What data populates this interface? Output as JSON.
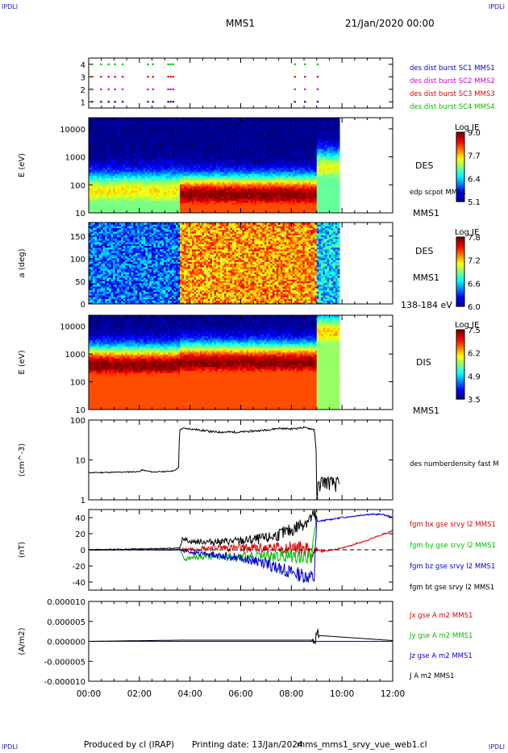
{
  "header": {
    "spacecraft": "MMS1",
    "datetime": "21/Jan/2020 00:00",
    "corner_tl": "IPDLI",
    "corner_tr": "IPDLI",
    "corner_bl": "IPDLI",
    "corner_br": "IPDLI"
  },
  "footer": {
    "produced_by": "Produced by cl (IRAP)",
    "printing_date": "Printing date: 13/Jan/2024",
    "filename": "mms_mms1_srvy_vue_web1.cl"
  },
  "colors": {
    "blue": "#0000cc",
    "magenta": "#cc00cc",
    "red": "#dd0000",
    "green": "#00bb00",
    "black": "#000000"
  },
  "chart_data": [
    {
      "type": "scatter",
      "panel": "burst-availability",
      "ylabel": "",
      "yticks": [
        "1",
        "2",
        "3",
        "4"
      ],
      "ylim": [
        0.5,
        4.5
      ],
      "series": [
        {
          "name": "des dist burst SC1 MMS1",
          "level": 1,
          "color": "#0000cc",
          "x_hours": [
            0.1,
            0.45,
            0.75,
            1.0,
            1.3,
            2.3,
            2.5,
            3.1,
            3.2,
            3.3,
            8.1,
            8.5,
            9.0
          ]
        },
        {
          "name": "des dist burst SC2 MMS2",
          "level": 2,
          "color": "#cc00cc",
          "x_hours": [
            0.1,
            0.45,
            0.75,
            1.0,
            1.3,
            2.3,
            2.5,
            3.1,
            3.2,
            3.3,
            8.1,
            8.5,
            9.0
          ]
        },
        {
          "name": "des dist burst SC3 MMS3",
          "level": 3,
          "color": "#dd0000",
          "x_hours": [
            0.1,
            0.45,
            0.75,
            1.0,
            1.3,
            2.3,
            2.5,
            3.1,
            3.2,
            3.3,
            8.1,
            8.5,
            9.0
          ]
        },
        {
          "name": "des dist burst SC4 MMS4",
          "level": 4,
          "color": "#00bb00",
          "x_hours": [
            0.1,
            0.45,
            0.75,
            1.0,
            1.3,
            2.3,
            2.5,
            3.1,
            3.2,
            3.3,
            8.1,
            8.5,
            9.0
          ]
        }
      ]
    },
    {
      "type": "heatmap",
      "panel": "des-energy",
      "ylabel": "E (eV)",
      "yscale": "log",
      "yticks": [
        "10",
        "100",
        "1000",
        "10000"
      ],
      "ylim": [
        10,
        25000
      ],
      "colorbar": {
        "label": "Log JE",
        "min": 5.1,
        "max": 9.0,
        "ticks": [
          "9.0",
          "7.7",
          "6.4",
          "5.1"
        ]
      },
      "side_labels": [
        "DES",
        "edp scpot MMS1",
        "MMS1"
      ],
      "segments": [
        {
          "x_start": 0.0,
          "x_end": 3.6,
          "peak_eV": 60,
          "peak_value": 7.6
        },
        {
          "x_start": 3.6,
          "x_end": 9.0,
          "peak_eV": 45,
          "peak_value": 9.0
        },
        {
          "x_start": 9.0,
          "x_end": 9.9,
          "peak_eV": 400,
          "peak_value": 7.5
        }
      ]
    },
    {
      "type": "heatmap",
      "panel": "des-pitch",
      "ylabel": "a (deg)",
      "yticks": [
        "0",
        "50",
        "100",
        "150"
      ],
      "ylim": [
        0,
        180
      ],
      "colorbar": {
        "label": "Log JE",
        "min": 6.0,
        "max": 7.8,
        "ticks": [
          "7.8",
          "7.2",
          "6.6",
          "6.0"
        ]
      },
      "side_labels": [
        "DES",
        "MMS1",
        "138-184 eV"
      ],
      "segments": [
        {
          "x_start": 0.0,
          "x_end": 3.6,
          "mean_value": 6.4
        },
        {
          "x_start": 3.6,
          "x_end": 9.0,
          "mean_value": 7.3
        },
        {
          "x_start": 9.0,
          "x_end": 9.9,
          "mean_value": 6.6
        }
      ]
    },
    {
      "type": "heatmap",
      "panel": "dis-energy",
      "ylabel": "E (eV)",
      "yscale": "log",
      "yticks": [
        "10",
        "100",
        "1000",
        "10000"
      ],
      "ylim": [
        10,
        25000
      ],
      "colorbar": {
        "label": "Log JE",
        "min": 3.5,
        "max": 7.5,
        "ticks": [
          "7.5",
          "6.2",
          "4.9",
          "3.5"
        ]
      },
      "side_labels": [
        "DIS",
        "MMS1"
      ],
      "segments": [
        {
          "x_start": 0.0,
          "x_end": 3.6,
          "peak_eV": 400,
          "peak_value": 7.5
        },
        {
          "x_start": 3.6,
          "x_end": 9.0,
          "peak_eV": 500,
          "peak_value": 7.5
        },
        {
          "x_start": 9.0,
          "x_end": 9.9,
          "peak_eV": 6000,
          "peak_value": 6.2
        }
      ]
    },
    {
      "type": "line",
      "panel": "density",
      "ylabel": "(cm^-3)",
      "yscale": "log",
      "yticks": [
        "1",
        "10",
        "100"
      ],
      "ylim": [
        1,
        100
      ],
      "side_labels": [
        "des numberdensity fast M"
      ],
      "series": [
        {
          "name": "des numberdensity fast M",
          "color": "#000000",
          "x": [
            0.0,
            1.0,
            2.0,
            2.1,
            2.5,
            3.0,
            3.4,
            3.55,
            3.6,
            3.7,
            4.0,
            5.0,
            6.0,
            7.0,
            7.5,
            8.0,
            8.5,
            8.9,
            9.0,
            9.1,
            9.2,
            9.5,
            9.9
          ],
          "y": [
            4.8,
            4.9,
            5.1,
            5.6,
            5.0,
            5.1,
            5.4,
            6.5,
            55,
            62,
            60,
            50,
            50,
            56,
            62,
            60,
            65,
            58,
            1.3,
            2.5,
            3.0,
            2.8,
            2.5
          ]
        }
      ]
    },
    {
      "type": "line",
      "panel": "magnetic-field",
      "ylabel": "(nT)",
      "yticks": [
        "-40",
        "-20",
        "0",
        "20",
        "40"
      ],
      "ylim": [
        -50,
        50
      ],
      "side_labels": [
        "fgm bx gse srvy l2 MMS1",
        "fgm by gse srvy l2 MMS1",
        "fgm bz gse srvy l2 MMS1",
        "fgm bt gse srvy l2 MMS1"
      ],
      "series": [
        {
          "name": "fgm bx gse srvy l2 MMS1",
          "color": "#dd0000",
          "x": [
            0,
            3.6,
            4.0,
            5.0,
            6.0,
            7.0,
            8.0,
            9.0,
            9.2,
            10.0,
            11.0,
            12.0
          ],
          "y": [
            0,
            0,
            1,
            3,
            2,
            2,
            3,
            0,
            -2,
            2,
            12,
            24
          ]
        },
        {
          "name": "fgm by gse srvy l2 MMS1",
          "color": "#00bb00",
          "x": [
            0,
            3.6,
            3.8,
            4.0,
            5.0,
            6.0,
            7.0,
            8.0,
            8.8,
            9.0
          ],
          "y": [
            0,
            0,
            -12,
            -10,
            -8,
            -9,
            -8,
            -8,
            -8,
            48
          ]
        },
        {
          "name": "fgm bz gse srvy l2 MMS1",
          "color": "#0000cc",
          "x": [
            0,
            3.6,
            4.0,
            5.0,
            6.0,
            7.0,
            8.0,
            8.9,
            9.0,
            10.0,
            11.0,
            11.6,
            12.0
          ],
          "y": [
            0,
            0,
            -3,
            -6,
            -10,
            -17,
            -28,
            -35,
            35,
            40,
            44,
            44,
            40
          ]
        },
        {
          "name": "fgm bt gse srvy l2 MMS1",
          "color": "#000000",
          "x": [
            0,
            3.6,
            3.7,
            4.0,
            5.0,
            6.0,
            7.0,
            8.0,
            8.9,
            9.0
          ],
          "y": [
            0,
            2,
            15,
            10,
            10,
            11,
            14,
            24,
            42,
            40
          ]
        }
      ]
    },
    {
      "type": "line",
      "panel": "current-density",
      "ylabel": "(A/m2)",
      "yticks": [
        "-0.000010",
        "-0.000005",
        "0.000000",
        "0.000005",
        "0.000010"
      ],
      "ylim": [
        -1e-05,
        1e-05
      ],
      "side_labels": [
        "Jx gse A m2 MMS1",
        "Jy gse A m2 MMS1",
        "Jz gse A m2 MMS1",
        "J A m2 MMS1"
      ],
      "series": [
        {
          "name": "Jx gse A m2 MMS1",
          "color": "#dd0000",
          "x": [
            0,
            12
          ],
          "y": [
            0,
            0
          ]
        },
        {
          "name": "Jy gse A m2 MMS1",
          "color": "#00bb00",
          "x": [
            0,
            12
          ],
          "y": [
            0,
            0
          ]
        },
        {
          "name": "Jz gse A m2 MMS1",
          "color": "#0000cc",
          "x": [
            0,
            12
          ],
          "y": [
            0,
            0
          ]
        },
        {
          "name": "J A m2 MMS1",
          "color": "#000000",
          "x": [
            0,
            3.6,
            8.9,
            9.0,
            12
          ],
          "y": [
            0,
            3e-07,
            3e-07,
            1.5e-06,
            2e-07
          ]
        }
      ]
    }
  ],
  "xaxis": {
    "ticks": [
      "00:00",
      "02:00",
      "04:00",
      "06:00",
      "08:00",
      "10:00",
      "12:00"
    ],
    "xlim_hours": [
      0,
      12
    ]
  }
}
